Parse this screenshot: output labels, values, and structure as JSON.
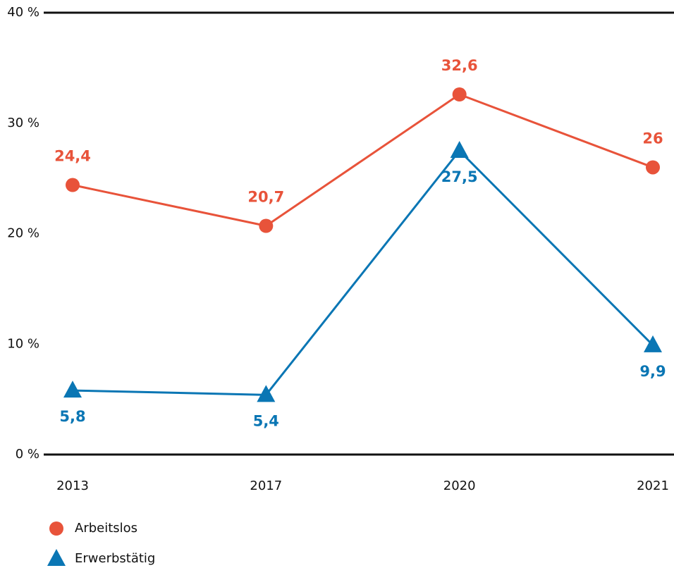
{
  "chart_data": {
    "type": "line",
    "categories": [
      "2013",
      "2017",
      "2020",
      "2021"
    ],
    "series": [
      {
        "name": "Arbeitslos",
        "color": "#e8533a",
        "marker": "circle",
        "values": [
          24.4,
          20.7,
          32.6,
          26
        ],
        "value_labels": [
          "24,4",
          "20,7",
          "32,6",
          "26"
        ],
        "label_position": "above"
      },
      {
        "name": "Erwerbstätig",
        "color": "#0a76b4",
        "marker": "triangle",
        "values": [
          5.8,
          5.4,
          27.5,
          9.9
        ],
        "value_labels": [
          "5,8",
          "5,4",
          "27,5",
          "9,9"
        ],
        "label_position": "below"
      }
    ],
    "ylim": [
      0,
      40
    ],
    "yticks": [
      {
        "value": 0,
        "label": "0 %"
      },
      {
        "value": 10,
        "label": "10 %"
      },
      {
        "value": 20,
        "label": "20 %"
      },
      {
        "value": 30,
        "label": "30 %"
      },
      {
        "value": 40,
        "label": "40 %"
      }
    ],
    "grid": false,
    "legend": "bottom-left"
  }
}
